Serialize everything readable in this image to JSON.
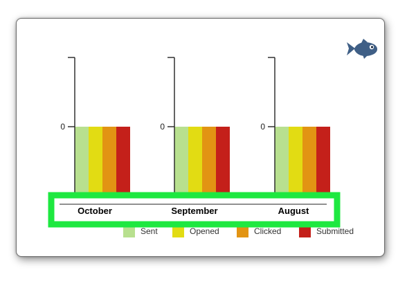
{
  "chart_data": {
    "type": "bar",
    "categories": [
      "October",
      "September",
      "August"
    ],
    "series": [
      {
        "name": "Sent",
        "values": [
          0,
          0,
          0
        ],
        "color": "#b8e08f"
      },
      {
        "name": "Opened",
        "values": [
          0,
          0,
          0
        ],
        "color": "#e2dc13"
      },
      {
        "name": "Clicked",
        "values": [
          0,
          0,
          0
        ],
        "color": "#e29413"
      },
      {
        "name": "Submitted",
        "values": [
          0,
          0,
          0
        ],
        "color": "#c4201a"
      }
    ],
    "y_tick_labels": [
      "0"
    ],
    "legend_position": "bottom-right",
    "grid": false
  },
  "highlight_color": "#1ee840",
  "logo": {
    "icon": "fish-icon",
    "color": "#3f5f86"
  }
}
